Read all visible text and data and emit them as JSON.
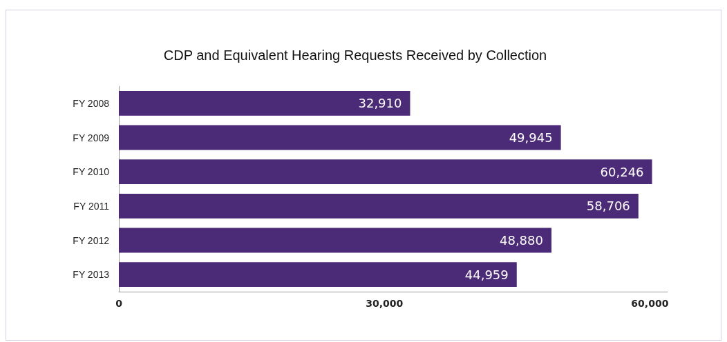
{
  "chart_data": {
    "type": "bar",
    "orientation": "horizontal",
    "title": "CDP and Equivalent Hearing Requests Received by Collection",
    "categories": [
      "FY 2008",
      "FY 2009",
      "FY 2010",
      "FY 2011",
      "FY 2012",
      "FY 2013"
    ],
    "values": [
      32910,
      49945,
      60246,
      58706,
      48880,
      44959
    ],
    "value_labels": [
      "32,910",
      "49,945",
      "60,246",
      "58,706",
      "48,880",
      "44,959"
    ],
    "color": "#4b2a78",
    "xlim": [
      0,
      62000
    ],
    "xticks": [
      {
        "value": 0,
        "label": "0"
      },
      {
        "value": 30000,
        "label": "30,000"
      },
      {
        "value": 60000,
        "label": "60,000"
      }
    ],
    "grid": false
  }
}
